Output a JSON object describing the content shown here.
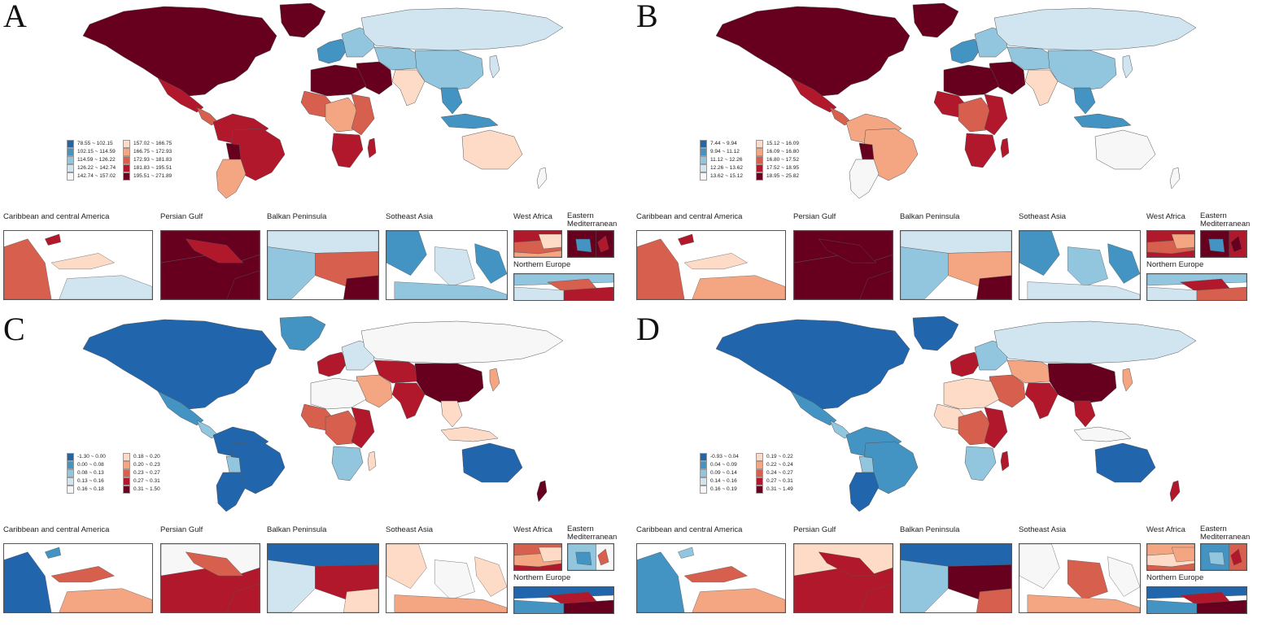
{
  "inset_titles": {
    "caribbean": "Caribbean and central America",
    "persian_gulf": "Persian Gulf",
    "balkan": "Balkan Peninsula",
    "se_asia": "Sotheast Asia",
    "west_africa": "West Africa",
    "east_med": "Eastern\nMediterranean",
    "northern_europe": "Northern Europe"
  },
  "colors": {
    "c1": "#2166ac",
    "c2": "#4393c3",
    "c3": "#92c5de",
    "c4": "#d1e5f0",
    "c5": "#f7f7f7",
    "c6": "#fddbc7",
    "c7": "#f4a582",
    "c8": "#d6604d",
    "c9": "#b2182b",
    "c10": "#67001f"
  },
  "panels": [
    {
      "letter": "A",
      "legend": [
        "78.55 ~ 102.15",
        "102.15 ~ 114.59",
        "114.59 ~ 126.22",
        "126.22 ~ 142.74",
        "142.74 ~ 157.02",
        "157.02 ~ 166.75",
        "166.75 ~ 172.93",
        "172.93 ~ 181.83",
        "181.83 ~ 195.51",
        "195.51 ~ 271.89"
      ],
      "regions": {
        "north_america": 10,
        "greenland": 10,
        "mexico": 9,
        "central_america": 8,
        "south_america_n": 9,
        "brazil": 9,
        "south_america_s": 7,
        "bolivia": 10,
        "western_europe": 2,
        "eastern_europe": 3,
        "russia": 4,
        "central_asia": 3,
        "middle_east": 10,
        "north_africa": 10,
        "west_africa": 8,
        "central_africa": 7,
        "east_africa": 8,
        "southern_africa": 9,
        "madagascar": 9,
        "south_asia": 6,
        "china": 3,
        "se_asia": 2,
        "indonesia": 2,
        "japan": 4,
        "australia": 6,
        "new_zealand": 5
      },
      "insets": {
        "caribbean": [
          8,
          9,
          6,
          4
        ],
        "persian_gulf": [
          10,
          10,
          9,
          10
        ],
        "balkan": [
          4,
          8,
          3,
          10
        ],
        "se_asia": [
          2,
          4,
          2,
          3
        ],
        "west_africa": [
          9,
          8,
          7,
          6
        ],
        "east_med": [
          10,
          10,
          2,
          9
        ],
        "northern_europe": [
          3,
          8,
          4,
          9
        ]
      }
    },
    {
      "letter": "B",
      "legend": [
        "7.44 ~ 9.94",
        "9.94 ~ 11.12",
        "11.12 ~ 12.26",
        "12.26 ~ 13.62",
        "13.62 ~ 15.12",
        "15.12 ~ 16.09",
        "16.09 ~ 16.80",
        "16.80 ~ 17.52",
        "17.52 ~ 18.95",
        "18.95 ~ 25.82"
      ],
      "regions": {
        "north_america": 10,
        "greenland": 10,
        "mexico": 9,
        "central_america": 8,
        "south_america_n": 7,
        "brazil": 7,
        "south_america_s": 5,
        "bolivia": 10,
        "western_europe": 2,
        "eastern_europe": 3,
        "russia": 4,
        "central_asia": 3,
        "middle_east": 10,
        "north_africa": 10,
        "west_africa": 9,
        "central_africa": 8,
        "east_africa": 9,
        "southern_africa": 9,
        "madagascar": 9,
        "south_asia": 6,
        "china": 3,
        "se_asia": 2,
        "indonesia": 2,
        "japan": 4,
        "australia": 5,
        "new_zealand": 5
      },
      "insets": {
        "caribbean": [
          8,
          9,
          6,
          7
        ],
        "persian_gulf": [
          10,
          10,
          10,
          10
        ],
        "balkan": [
          4,
          7,
          3,
          10
        ],
        "se_asia": [
          2,
          3,
          2,
          4
        ],
        "west_africa": [
          9,
          8,
          9,
          7
        ],
        "east_med": [
          10,
          9,
          2,
          10
        ],
        "northern_europe": [
          3,
          9,
          4,
          8
        ]
      }
    },
    {
      "letter": "C",
      "legend": [
        "-1.30 ~ 0.00",
        "0.00 ~ 0.08",
        "0.08 ~ 0.13",
        "0.13 ~ 0.16",
        "0.16 ~ 0.18",
        "0.18 ~ 0.20",
        "0.20 ~ 0.23",
        "0.23 ~ 0.27",
        "0.27 ~ 0.31",
        "0.31 ~ 1.50"
      ],
      "regions": {
        "north_america": 1,
        "greenland": 2,
        "mexico": 2,
        "central_america": 3,
        "south_america_n": 1,
        "brazil": 1,
        "south_america_s": 1,
        "bolivia": 3,
        "western_europe": 9,
        "eastern_europe": 4,
        "russia": 5,
        "central_asia": 9,
        "middle_east": 7,
        "north_africa": 5,
        "west_africa": 8,
        "central_africa": 8,
        "east_africa": 9,
        "southern_africa": 3,
        "madagascar": 6,
        "south_asia": 9,
        "china": 10,
        "se_asia": 6,
        "indonesia": 6,
        "japan": 7,
        "australia": 1,
        "new_zealand": 10
      },
      "insets": {
        "caribbean": [
          1,
          2,
          8,
          7
        ],
        "persian_gulf": [
          5,
          9,
          8,
          9
        ],
        "balkan": [
          1,
          9,
          4,
          6
        ],
        "se_asia": [
          6,
          5,
          6,
          7
        ],
        "west_africa": [
          8,
          7,
          9,
          6
        ],
        "east_med": [
          3,
          5,
          2,
          8
        ],
        "northern_europe": [
          1,
          9,
          2,
          10
        ]
      }
    },
    {
      "letter": "D",
      "legend": [
        "-0.93 ~ 0.04",
        "0.04 ~ 0.09",
        "0.09 ~ 0.14",
        "0.14 ~ 0.16",
        "0.16 ~ 0.19",
        "0.19 ~ 0.22",
        "0.22 ~ 0.24",
        "0.24 ~ 0.27",
        "0.27 ~ 0.31",
        "0.31 ~ 1.49"
      ],
      "regions": {
        "north_america": 1,
        "greenland": 1,
        "mexico": 2,
        "central_america": 3,
        "south_america_n": 2,
        "brazil": 2,
        "south_america_s": 1,
        "bolivia": 3,
        "western_europe": 9,
        "eastern_europe": 3,
        "russia": 4,
        "central_asia": 7,
        "middle_east": 8,
        "north_africa": 6,
        "west_africa": 6,
        "central_africa": 8,
        "east_africa": 9,
        "southern_africa": 3,
        "madagascar": 9,
        "south_asia": 9,
        "china": 10,
        "se_asia": 9,
        "indonesia": 5,
        "japan": 7,
        "australia": 1,
        "new_zealand": 9
      },
      "insets": {
        "caribbean": [
          2,
          3,
          8,
          7
        ],
        "persian_gulf": [
          6,
          9,
          9,
          9
        ],
        "balkan": [
          1,
          10,
          3,
          8
        ],
        "se_asia": [
          5,
          8,
          5,
          7
        ],
        "west_africa": [
          7,
          6,
          8,
          7
        ],
        "east_med": [
          2,
          8,
          3,
          9
        ],
        "northern_europe": [
          1,
          9,
          2,
          10
        ]
      }
    }
  ]
}
